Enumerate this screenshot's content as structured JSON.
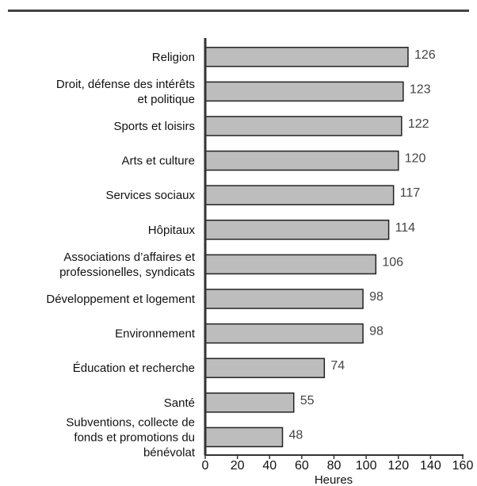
{
  "chart_data": {
    "type": "bar",
    "orientation": "horizontal",
    "categories": [
      [
        "Religion"
      ],
      [
        "Droit, défense des intérêts",
        "et politique"
      ],
      [
        "Sports et loisirs"
      ],
      [
        "Arts et culture"
      ],
      [
        "Services sociaux"
      ],
      [
        "Hôpitaux"
      ],
      [
        "Associations d’affaires et",
        "professionelles, syndicats"
      ],
      [
        "Développement et logement"
      ],
      [
        "Environnement"
      ],
      [
        "Éducation et recherche"
      ],
      [
        "Santé"
      ],
      [
        "Subventions, collecte de",
        "fonds et promotions du",
        "bénévolat"
      ]
    ],
    "values": [
      126,
      123,
      122,
      120,
      117,
      114,
      106,
      98,
      98,
      74,
      55,
      48
    ],
    "value_labels": [
      "126",
      "123",
      "122",
      "120",
      "117",
      "114",
      "106",
      "98",
      "98",
      "74",
      "55",
      "48"
    ],
    "xlim": [
      0,
      160
    ],
    "xticks": [
      0,
      20,
      40,
      60,
      80,
      100,
      120,
      140,
      160
    ],
    "xtick_labels": [
      "0",
      "20",
      "40",
      "60",
      "80",
      "100",
      "120",
      "140",
      "160"
    ],
    "xlabel": "Heures",
    "grid": false,
    "bar_color": "#bdbdbd",
    "bar_edge_color": "#222222"
  }
}
